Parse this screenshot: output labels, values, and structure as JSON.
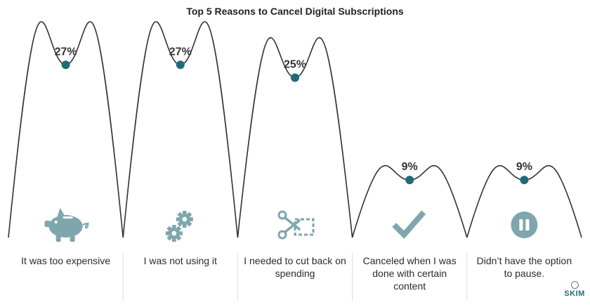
{
  "chart_data": {
    "type": "line",
    "title": "Top 5 Reasons to Cancel Digital Subscriptions",
    "categories": [
      "It was too expensive",
      "I was not using it",
      "I needed to cut back on spending",
      "Canceled when I was done with certain content",
      "Didn’t have the option to pause."
    ],
    "values": [
      27,
      27,
      25,
      9,
      9
    ],
    "value_labels": [
      "27%",
      "27%",
      "25%",
      "9%",
      "9%"
    ],
    "icons": [
      "piggy-bank-icon",
      "gears-icon",
      "scissors-icon",
      "checkmark-icon",
      "pause-icon"
    ],
    "grid": false,
    "legend": "none"
  },
  "colors": {
    "curve": "#333333",
    "marker": "#1f6b79",
    "icon": "#7fa6ad",
    "divider": "#dddddd"
  },
  "brand": {
    "name": "SKIM"
  }
}
